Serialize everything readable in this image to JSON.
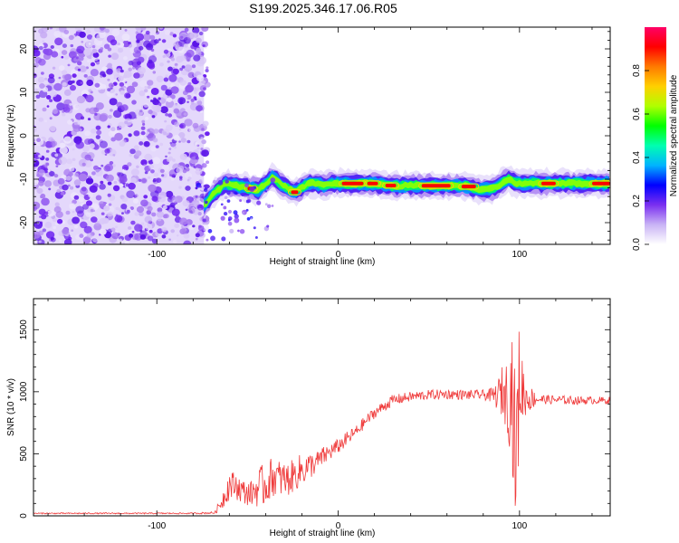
{
  "figure_title": "S199.2025.346.17.06.R05",
  "chart_data": [
    {
      "type": "heatmap",
      "title": "",
      "xlabel": "Height of straight line (km)",
      "ylabel": "Frequency (Hz)",
      "xlim": [
        -168,
        150
      ],
      "ylim": [
        -25,
        25
      ],
      "xticks": [
        -100,
        0,
        100
      ],
      "yticks": [
        -20,
        -10,
        0,
        10,
        20
      ],
      "noise_region_x": [
        -168,
        -74
      ],
      "ridge": {
        "x": [
          -74,
          -68,
          -62,
          -56,
          -50,
          -44,
          -40,
          -36,
          -32,
          -28,
          -24,
          -20,
          -16,
          -12,
          -8,
          -4,
          0,
          10,
          20,
          30,
          40,
          50,
          60,
          70,
          80,
          86,
          90,
          94,
          98,
          104,
          110,
          120,
          130,
          140,
          150
        ],
        "freq": [
          -16,
          -13,
          -11,
          -11.5,
          -12,
          -12.5,
          -11,
          -9.5,
          -11,
          -12,
          -13,
          -12,
          -11,
          -11,
          -11.5,
          -11,
          -11,
          -11,
          -11,
          -11.5,
          -11.5,
          -11.5,
          -11.5,
          -11.5,
          -12.5,
          -12,
          -11,
          -10,
          -11,
          -11,
          -11,
          -11,
          -11,
          -11,
          -11
        ]
      },
      "colorbar": {
        "label": "Normalized spectral amplitude",
        "range": [
          0,
          1
        ],
        "ticks": [
          0.0,
          0.2,
          0.4,
          0.6,
          0.8
        ],
        "colormap": [
          "#ffffff",
          "#c9b3f5",
          "#7a2ff0",
          "#0000ff",
          "#00b4ff",
          "#00ffb0",
          "#00ff00",
          "#b0ff00",
          "#ffd000",
          "#ff7a00",
          "#ff0000",
          "#ff0066"
        ]
      }
    },
    {
      "type": "line",
      "title": "",
      "xlabel": "Height of straight line (km)",
      "ylabel": "SNR (10 * v/v)",
      "xlim": [
        -168,
        150
      ],
      "ylim": [
        0,
        1750
      ],
      "xticks": [
        -100,
        0,
        100
      ],
      "yticks": [
        0,
        500,
        1000,
        1500
      ],
      "series": [
        {
          "name": "SNR",
          "color": "#ef3b3b",
          "x": [
            -168,
            -100,
            -80,
            -68,
            -64,
            -60,
            -56,
            -52,
            -48,
            -44,
            -40,
            -36,
            -32,
            -28,
            -24,
            -20,
            -16,
            -12,
            -8,
            -4,
            0,
            5,
            10,
            15,
            20,
            25,
            30,
            40,
            50,
            60,
            70,
            80,
            85,
            88,
            90,
            93,
            96,
            98,
            100,
            103,
            110,
            120,
            130,
            140,
            150
          ],
          "values": [
            20,
            20,
            20,
            25,
            120,
            250,
            240,
            190,
            180,
            230,
            250,
            320,
            300,
            290,
            330,
            370,
            400,
            430,
            480,
            520,
            560,
            620,
            680,
            760,
            830,
            880,
            930,
            960,
            975,
            980,
            975,
            975,
            970,
            970,
            1000,
            980,
            1000,
            400,
            1100,
            950,
            940,
            935,
            930,
            930,
            930
          ],
          "noise_amplitude": [
            5,
            5,
            5,
            10,
            70,
            120,
            110,
            100,
            100,
            160,
            180,
            160,
            150,
            140,
            130,
            140,
            110,
            90,
            80,
            70,
            60,
            60,
            50,
            50,
            45,
            45,
            45,
            40,
            40,
            40,
            40,
            40,
            60,
            120,
            200,
            280,
            600,
            600,
            500,
            150,
            40,
            35,
            35,
            30,
            30
          ]
        }
      ]
    }
  ]
}
